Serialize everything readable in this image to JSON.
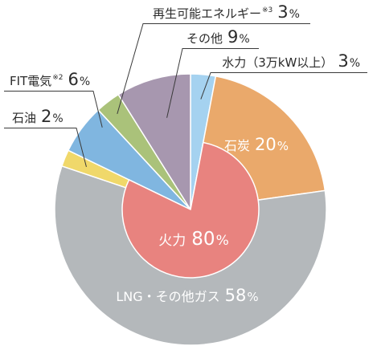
{
  "chart_data": {
    "type": "pie",
    "unit": "%",
    "slices": [
      {
        "label": "水力（3万kW以上）",
        "value": 3,
        "color": "#a5d2f0"
      },
      {
        "label": "火力",
        "value": 80,
        "color": "#e8837f",
        "children": [
          {
            "label": "石炭",
            "value": 20,
            "color": "#eaa96b"
          },
          {
            "label": "LNG・その他ガス",
            "value": 58,
            "color": "#b4b8bb"
          },
          {
            "label": "石油",
            "value": 2,
            "color": "#f0d86a"
          }
        ]
      },
      {
        "label": "FIT電気",
        "note": "※2",
        "value": 6,
        "color": "#80b6e0"
      },
      {
        "label": "再生可能エネルギー",
        "note": "※3",
        "value": 3,
        "color": "#aac27a"
      },
      {
        "label": "その他",
        "value": 9,
        "color": "#a797af"
      }
    ]
  }
}
